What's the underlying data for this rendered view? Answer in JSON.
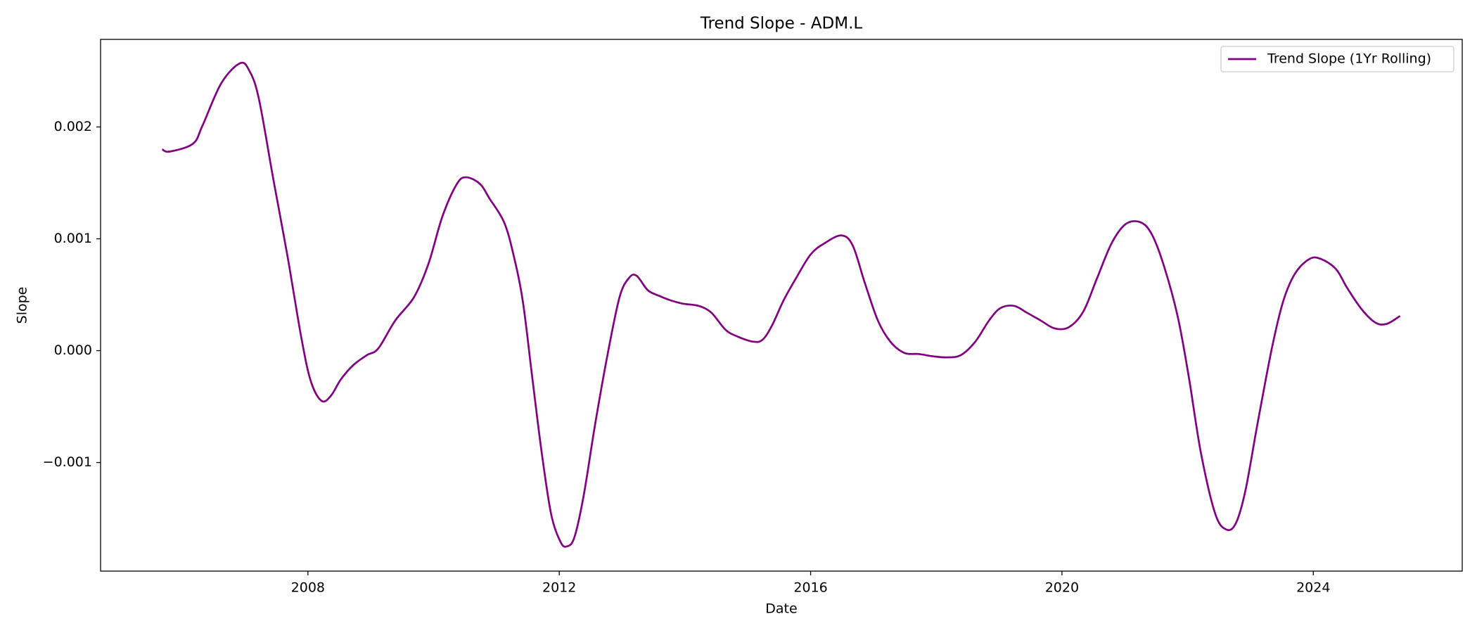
{
  "chart_data": {
    "type": "line",
    "title": "Trend Slope - ADM.L",
    "xlabel": "Date",
    "ylabel": "Slope",
    "legend": "upper right",
    "x": [
      2005.68,
      2005.8,
      2006.17,
      2006.32,
      2006.62,
      2006.92,
      2007.07,
      2007.22,
      2007.45,
      2007.67,
      2007.9,
      2008.05,
      2008.22,
      2008.37,
      2008.52,
      2008.72,
      2008.94,
      2009.12,
      2009.39,
      2009.69,
      2009.92,
      2010.14,
      2010.37,
      2010.52,
      2010.74,
      2010.89,
      2011.12,
      2011.27,
      2011.42,
      2011.57,
      2011.72,
      2011.87,
      2012.02,
      2012.12,
      2012.24,
      2012.39,
      2012.57,
      2012.77,
      2012.96,
      2013.11,
      2013.23,
      2013.41,
      2013.59,
      2013.77,
      2013.97,
      2014.22,
      2014.42,
      2014.64,
      2014.82,
      2015.09,
      2015.24,
      2015.39,
      2015.57,
      2015.77,
      2016.0,
      2016.22,
      2016.49,
      2016.67,
      2016.86,
      2017.07,
      2017.27,
      2017.49,
      2017.72,
      2017.94,
      2018.17,
      2018.39,
      2018.62,
      2018.84,
      2019.02,
      2019.24,
      2019.44,
      2019.66,
      2019.88,
      2020.11,
      2020.34,
      2020.56,
      2020.79,
      2021.01,
      2021.24,
      2021.42,
      2021.61,
      2021.84,
      2022.02,
      2022.21,
      2022.44,
      2022.62,
      2022.77,
      2022.92,
      2023.11,
      2023.34,
      2023.52,
      2023.71,
      2023.94,
      2024.12,
      2024.36,
      2024.54,
      2024.77,
      2024.99,
      2025.17,
      2025.38
    ],
    "series": [
      {
        "name": "Trend Slope (1Yr Rolling)",
        "color": "#800080",
        "values": [
          0.0018,
          0.00178,
          0.00185,
          0.00201,
          0.00239,
          0.00257,
          0.0025,
          0.00225,
          0.00153,
          0.00086,
          0.0001,
          -0.00028,
          -0.00045,
          -0.0004,
          -0.00026,
          -0.00013,
          -4e-05,
          2e-05,
          0.00027,
          0.00048,
          0.00078,
          0.0012,
          0.00149,
          0.00155,
          0.00149,
          0.00136,
          0.00115,
          0.00086,
          0.00044,
          -0.00024,
          -0.00091,
          -0.00146,
          -0.00171,
          -0.00175,
          -0.00167,
          -0.00129,
          -0.00066,
          -3e-05,
          0.00048,
          0.00065,
          0.00067,
          0.00054,
          0.00049,
          0.00045,
          0.00042,
          0.0004,
          0.00034,
          0.00019,
          0.00013,
          8e-05,
          0.0001,
          0.00023,
          0.00045,
          0.00065,
          0.00086,
          0.00096,
          0.00103,
          0.00094,
          0.00061,
          0.00027,
          8e-05,
          -2e-05,
          -3e-05,
          -5e-05,
          -6e-05,
          -4e-05,
          8e-05,
          0.00027,
          0.00038,
          0.0004,
          0.00034,
          0.00027,
          0.0002,
          0.00021,
          0.00035,
          0.00065,
          0.00096,
          0.00113,
          0.00115,
          0.00105,
          0.00078,
          0.00031,
          -0.00024,
          -0.00091,
          -0.00146,
          -0.0016,
          -0.00154,
          -0.00125,
          -0.00066,
          2e-05,
          0.00044,
          0.00069,
          0.00082,
          0.00082,
          0.00073,
          0.00056,
          0.00037,
          0.00025,
          0.00024,
          0.00031
        ]
      }
    ],
    "xlim": [
      2004.7,
      2026.37
    ],
    "xticks": [
      2008,
      2012,
      2016,
      2020,
      2024
    ],
    "ylim": [
      -0.001971,
      0.002783
    ],
    "yticks": [
      {
        "value": -0.001,
        "label": "−0.001"
      },
      {
        "value": 0,
        "label": "0.000"
      },
      0.001,
      0.002
    ]
  }
}
